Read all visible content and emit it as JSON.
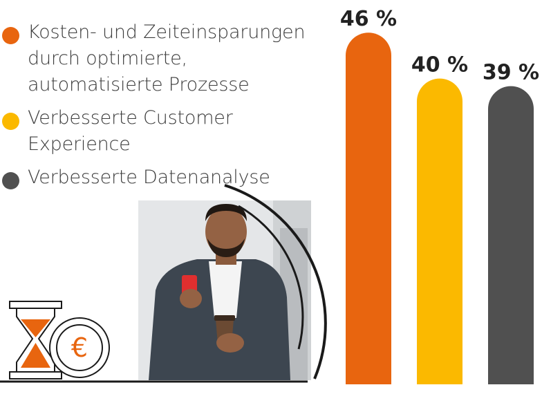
{
  "chart_data": {
    "type": "bar",
    "categories": [
      "Kosten- und Zeiteinsparungen\ndurch optimierte,\nautomatisierte Prozesse",
      "Verbesserte Customer Experience",
      "Verbesserte Datenanalyse"
    ],
    "values": [
      46,
      40,
      39
    ],
    "value_labels": [
      "46 %",
      "40 %",
      "39 %"
    ],
    "colors": [
      "#e8650f",
      "#fbb900",
      "#505050"
    ],
    "ylim": [
      0,
      50
    ],
    "legend_placement": "top-left",
    "grid": false
  }
}
